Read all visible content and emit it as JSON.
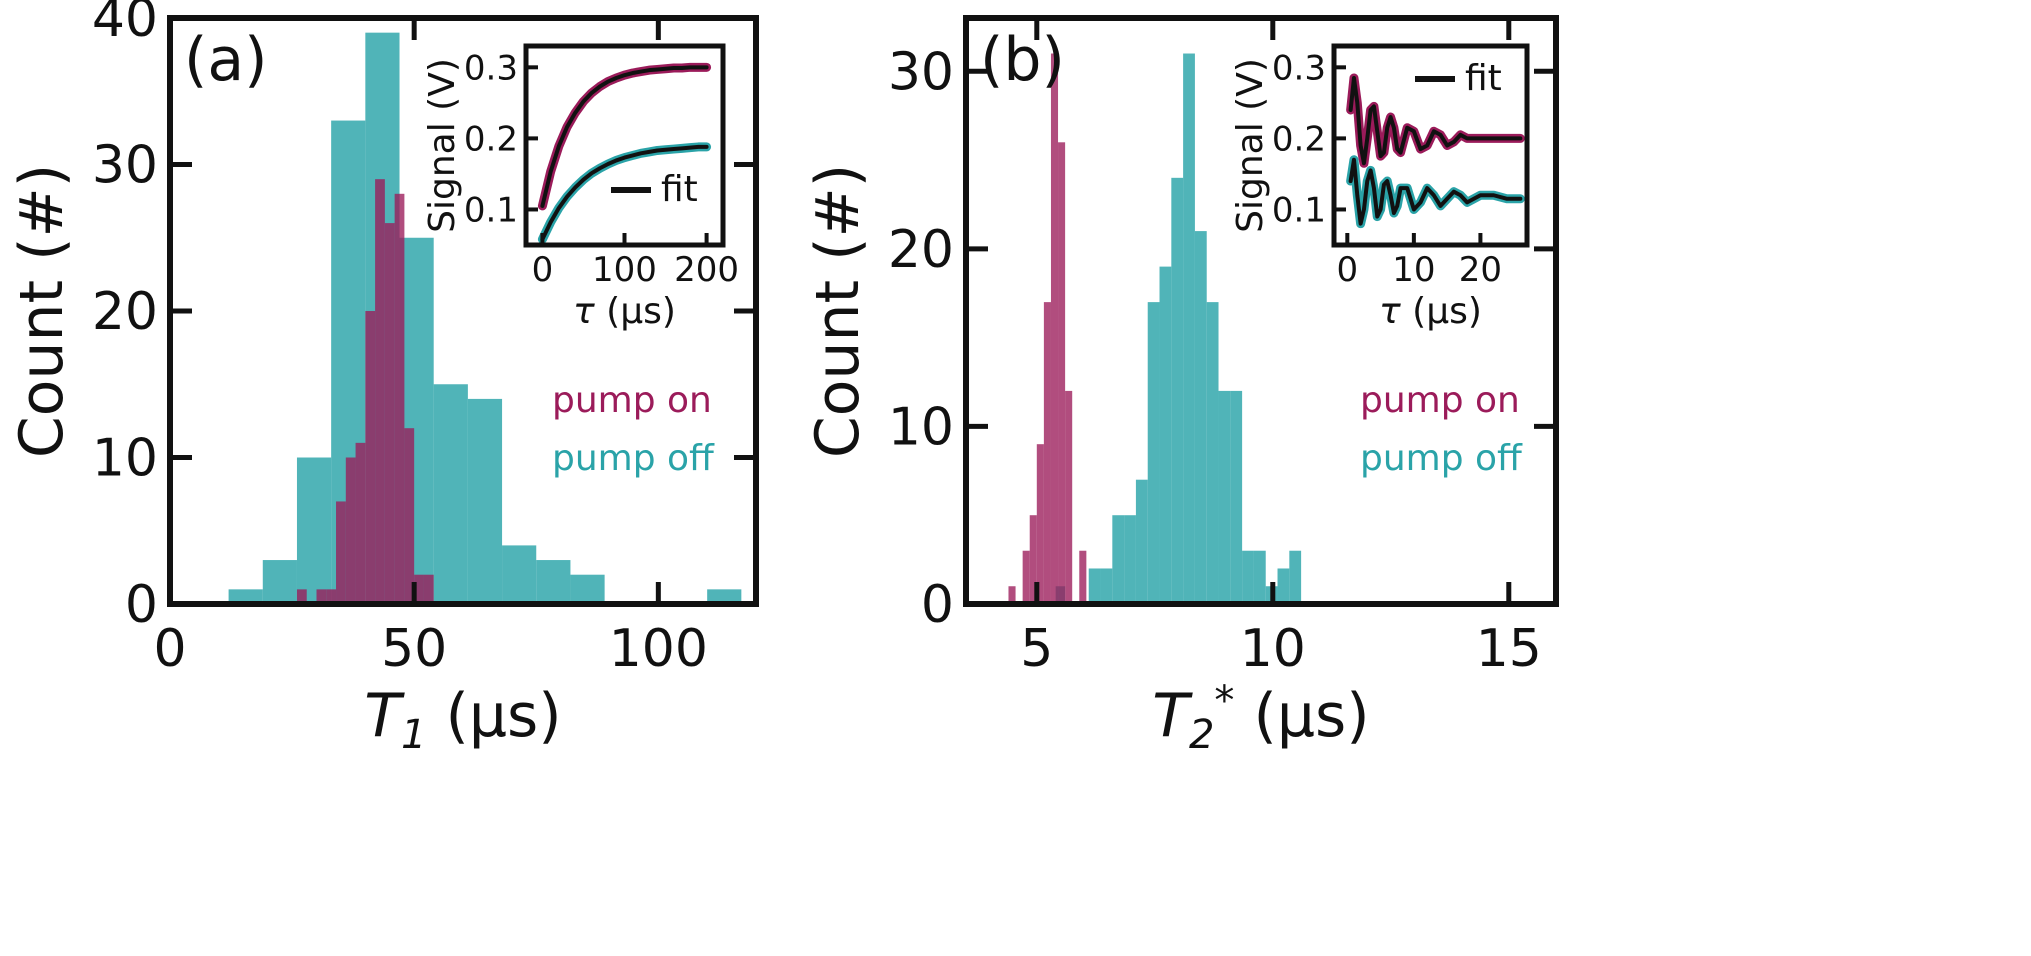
{
  "colors": {
    "pump_on": "#9b1b5a",
    "pump_off": "#2aa3a8",
    "fit": "#111111"
  },
  "chart_data": [
    {
      "type": "bar",
      "panel_label": "(a)",
      "xlabel": {
        "symbol": "T",
        "subscript": "1",
        "superscript": "",
        "unit": " (μs)"
      },
      "ylabel": "Count (#)",
      "xlim": [
        0,
        120
      ],
      "ylim": [
        0,
        40
      ],
      "xticks": [
        0,
        50,
        100
      ],
      "yticks": [
        0,
        10,
        20,
        30,
        40
      ],
      "series": [
        {
          "name": "pump off",
          "color_key": "pump_off",
          "bins": [
            {
              "x0": 12,
              "x1": 19,
              "count": 1
            },
            {
              "x0": 19,
              "x1": 26,
              "count": 3
            },
            {
              "x0": 26,
              "x1": 33,
              "count": 10
            },
            {
              "x0": 33,
              "x1": 40,
              "count": 33
            },
            {
              "x0": 40,
              "x1": 47,
              "count": 39
            },
            {
              "x0": 47,
              "x1": 54,
              "count": 25
            },
            {
              "x0": 54,
              "x1": 61,
              "count": 15
            },
            {
              "x0": 61,
              "x1": 68,
              "count": 14
            },
            {
              "x0": 68,
              "x1": 75,
              "count": 4
            },
            {
              "x0": 75,
              "x1": 82,
              "count": 3
            },
            {
              "x0": 82,
              "x1": 89,
              "count": 2
            },
            {
              "x0": 110,
              "x1": 117,
              "count": 1
            }
          ]
        },
        {
          "name": "pump on",
          "color_key": "pump_on",
          "bins": [
            {
              "x0": 26,
              "x1": 28,
              "count": 1
            },
            {
              "x0": 30,
              "x1": 32,
              "count": 1
            },
            {
              "x0": 32,
              "x1": 34,
              "count": 1
            },
            {
              "x0": 34,
              "x1": 36,
              "count": 7
            },
            {
              "x0": 36,
              "x1": 38,
              "count": 10
            },
            {
              "x0": 38,
              "x1": 40,
              "count": 11
            },
            {
              "x0": 40,
              "x1": 42,
              "count": 20
            },
            {
              "x0": 42,
              "x1": 44,
              "count": 29
            },
            {
              "x0": 44,
              "x1": 46,
              "count": 26
            },
            {
              "x0": 46,
              "x1": 48,
              "count": 28
            },
            {
              "x0": 48,
              "x1": 50,
              "count": 12
            },
            {
              "x0": 50,
              "x1": 52,
              "count": 2
            },
            {
              "x0": 52,
              "x1": 54,
              "count": 2
            }
          ]
        }
      ],
      "legend": [
        {
          "label": "pump on",
          "color_key": "pump_on"
        },
        {
          "label": "pump off",
          "color_key": "pump_off"
        }
      ],
      "legend_position": "right",
      "inset": {
        "type": "line",
        "xlabel": {
          "symbol": "τ",
          "unit": " (μs)"
        },
        "ylabel": "Signal (V)",
        "xlim": [
          -20,
          220
        ],
        "ylim": [
          0.05,
          0.33
        ],
        "xticks": [
          0,
          100,
          200
        ],
        "yticks": [
          0.1,
          0.2,
          0.3
        ],
        "ytick_labels": [
          "0.1",
          "0.2",
          "0.3"
        ],
        "legend_label": "fit",
        "legend_position": "bottom-right",
        "series": [
          {
            "name": "pump on",
            "color_key": "pump_on",
            "x": [
              0,
              10,
              20,
              30,
              40,
              50,
              60,
              70,
              80,
              90,
              100,
              110,
              120,
              130,
              140,
              150,
              160,
              170,
              180,
              190,
              200
            ],
            "y": [
              0.105,
              0.153,
              0.189,
              0.216,
              0.236,
              0.252,
              0.264,
              0.273,
              0.28,
              0.285,
              0.289,
              0.292,
              0.294,
              0.296,
              0.297,
              0.298,
              0.299,
              0.299,
              0.3,
              0.3,
              0.3
            ]
          },
          {
            "name": "pump off",
            "color_key": "pump_off",
            "x": [
              0,
              10,
              20,
              30,
              40,
              50,
              60,
              70,
              80,
              90,
              100,
              110,
              120,
              130,
              140,
              150,
              160,
              170,
              180,
              190,
              200
            ],
            "y": [
              0.058,
              0.082,
              0.102,
              0.118,
              0.131,
              0.142,
              0.151,
              0.158,
              0.164,
              0.169,
              0.173,
              0.176,
              0.179,
              0.181,
              0.183,
              0.184,
              0.185,
              0.186,
              0.187,
              0.188,
              0.188
            ]
          }
        ]
      }
    },
    {
      "type": "bar",
      "panel_label": "(b)",
      "xlabel": {
        "symbol": "T",
        "subscript": "2",
        "superscript": "*",
        "unit": " (μs)"
      },
      "ylabel": "Count (#)",
      "xlim": [
        3.5,
        16
      ],
      "ylim": [
        0,
        33
      ],
      "xticks": [
        5,
        10,
        15
      ],
      "yticks": [
        0,
        10,
        20,
        30
      ],
      "series": [
        {
          "name": "pump on",
          "color_key": "pump_on",
          "bins": [
            {
              "x0": 4.4,
              "x1": 4.55,
              "count": 1
            },
            {
              "x0": 4.7,
              "x1": 4.85,
              "count": 3
            },
            {
              "x0": 4.85,
              "x1": 5.0,
              "count": 5
            },
            {
              "x0": 5.0,
              "x1": 5.15,
              "count": 9
            },
            {
              "x0": 5.15,
              "x1": 5.3,
              "count": 17
            },
            {
              "x0": 5.3,
              "x1": 5.45,
              "count": 31
            },
            {
              "x0": 5.45,
              "x1": 5.6,
              "count": 26
            },
            {
              "x0": 5.6,
              "x1": 5.75,
              "count": 12
            },
            {
              "x0": 5.9,
              "x1": 6.05,
              "count": 3
            }
          ]
        },
        {
          "name": "pump off",
          "color_key": "pump_off",
          "bins": [
            {
              "x0": 5.4,
              "x1": 5.6,
              "count": 1
            },
            {
              "x0": 6.1,
              "x1": 6.35,
              "count": 2
            },
            {
              "x0": 6.35,
              "x1": 6.6,
              "count": 2
            },
            {
              "x0": 6.6,
              "x1": 6.85,
              "count": 5
            },
            {
              "x0": 6.85,
              "x1": 7.1,
              "count": 5
            },
            {
              "x0": 7.1,
              "x1": 7.35,
              "count": 7
            },
            {
              "x0": 7.35,
              "x1": 7.6,
              "count": 17
            },
            {
              "x0": 7.6,
              "x1": 7.85,
              "count": 19
            },
            {
              "x0": 7.85,
              "x1": 8.1,
              "count": 24
            },
            {
              "x0": 8.1,
              "x1": 8.35,
              "count": 31
            },
            {
              "x0": 8.35,
              "x1": 8.6,
              "count": 21
            },
            {
              "x0": 8.6,
              "x1": 8.85,
              "count": 17
            },
            {
              "x0": 8.85,
              "x1": 9.1,
              "count": 12
            },
            {
              "x0": 9.1,
              "x1": 9.35,
              "count": 12
            },
            {
              "x0": 9.35,
              "x1": 9.6,
              "count": 3
            },
            {
              "x0": 9.6,
              "x1": 9.85,
              "count": 3
            },
            {
              "x0": 9.85,
              "x1": 10.1,
              "count": 1
            },
            {
              "x0": 10.1,
              "x1": 10.35,
              "count": 2
            },
            {
              "x0": 10.35,
              "x1": 10.6,
              "count": 3
            }
          ]
        }
      ],
      "legend": [
        {
          "label": "pump on",
          "color_key": "pump_on"
        },
        {
          "label": "pump off",
          "color_key": "pump_off"
        }
      ],
      "legend_position": "right",
      "inset": {
        "type": "line",
        "xlabel": {
          "symbol": "τ",
          "unit": " (μs)"
        },
        "ylabel": "Signal (V)",
        "xlim": [
          -2,
          27
        ],
        "ylim": [
          0.05,
          0.33
        ],
        "xticks": [
          0,
          10,
          20
        ],
        "yticks": [
          0.1,
          0.2,
          0.3
        ],
        "ytick_labels": [
          "0.1",
          "0.2",
          "0.3"
        ],
        "legend_label": "fit",
        "legend_position": "top-right",
        "series": [
          {
            "name": "pump on",
            "color_key": "pump_on",
            "x": [
              0.5,
              1.0,
              1.5,
              2.0,
              2.5,
              3.0,
              3.5,
              4.0,
              4.5,
              5.0,
              5.5,
              6.0,
              6.5,
              7.0,
              7.5,
              8.0,
              9.0,
              10.0,
              11.0,
              12.0,
              13.0,
              14.0,
              15.0,
              16.0,
              17.0,
              18.0,
              20.0,
              22.0,
              24.0,
              26.0
            ],
            "y": [
              0.24,
              0.285,
              0.25,
              0.19,
              0.165,
              0.2,
              0.24,
              0.245,
              0.21,
              0.175,
              0.18,
              0.215,
              0.23,
              0.215,
              0.185,
              0.18,
              0.215,
              0.21,
              0.185,
              0.19,
              0.21,
              0.205,
              0.19,
              0.195,
              0.205,
              0.2,
              0.2,
              0.2,
              0.2,
              0.2
            ]
          },
          {
            "name": "pump off",
            "color_key": "pump_off",
            "x": [
              0.5,
              1.0,
              1.5,
              2.0,
              2.5,
              3.0,
              3.5,
              4.0,
              4.5,
              5.0,
              5.5,
              6.0,
              6.5,
              7.0,
              7.5,
              8.0,
              9.0,
              10.0,
              11.0,
              12.0,
              13.0,
              14.0,
              15.0,
              16.0,
              17.0,
              18.0,
              20.0,
              22.0,
              24.0,
              26.0
            ],
            "y": [
              0.14,
              0.17,
              0.12,
              0.08,
              0.1,
              0.14,
              0.155,
              0.13,
              0.09,
              0.1,
              0.135,
              0.14,
              0.12,
              0.095,
              0.105,
              0.13,
              0.13,
              0.1,
              0.11,
              0.13,
              0.12,
              0.105,
              0.115,
              0.125,
              0.12,
              0.11,
              0.12,
              0.12,
              0.115,
              0.115
            ]
          }
        ]
      }
    }
  ]
}
